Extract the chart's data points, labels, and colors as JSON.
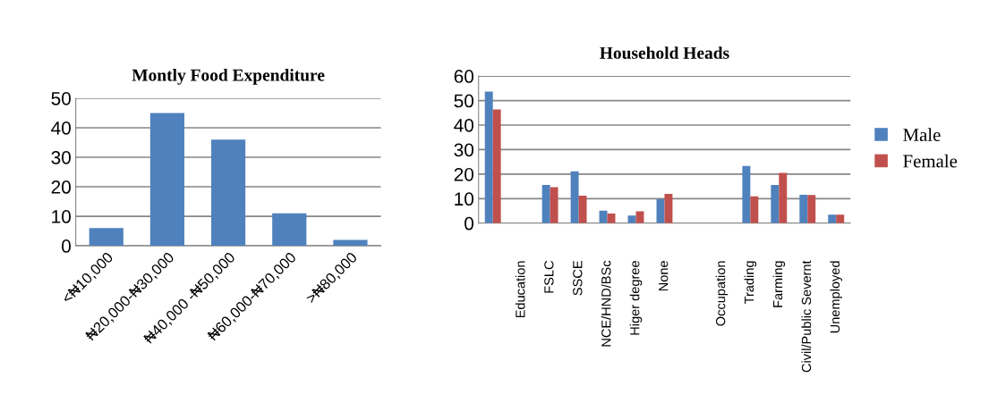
{
  "chart_data": [
    {
      "type": "bar",
      "title": "Montly Food Expenditure",
      "categories": [
        "<₦10,000",
        "₦20,000-₦30,000",
        "₦40,000 -₦50,000",
        "₦60,000-₦70,000",
        ">₦80,000"
      ],
      "values": [
        6,
        45,
        36,
        11,
        2
      ],
      "color": "#4f81bd",
      "ylim": [
        0,
        50
      ],
      "yticks": [
        0,
        10,
        20,
        30,
        40,
        50
      ],
      "grid": "y",
      "legend": false
    },
    {
      "type": "bar",
      "title": "Household Heads",
      "categories": [
        null,
        "Education",
        "FSLC",
        "SSCE",
        "NCE/HND/BSc",
        "Higer degree",
        "None",
        null,
        "Occupation",
        "Trading",
        "Farming",
        "Civil/Public Severnt",
        "Unemployed"
      ],
      "series": [
        {
          "name": "Male",
          "color": "#4f81bd",
          "values": [
            53.7,
            null,
            15.6,
            21.1,
            5.1,
            3.1,
            9.8,
            null,
            null,
            23.3,
            15.6,
            11.6,
            3.5
          ]
        },
        {
          "name": "Female",
          "color": "#c0504d",
          "values": [
            46.4,
            null,
            14.7,
            11.2,
            3.9,
            4.8,
            11.9,
            null,
            null,
            10.9,
            20.5,
            11.5,
            3.5
          ]
        }
      ],
      "ylim": [
        0,
        60
      ],
      "yticks": [
        0,
        10,
        20,
        30,
        40,
        50,
        60
      ],
      "grid": "y",
      "legend": "right"
    }
  ]
}
